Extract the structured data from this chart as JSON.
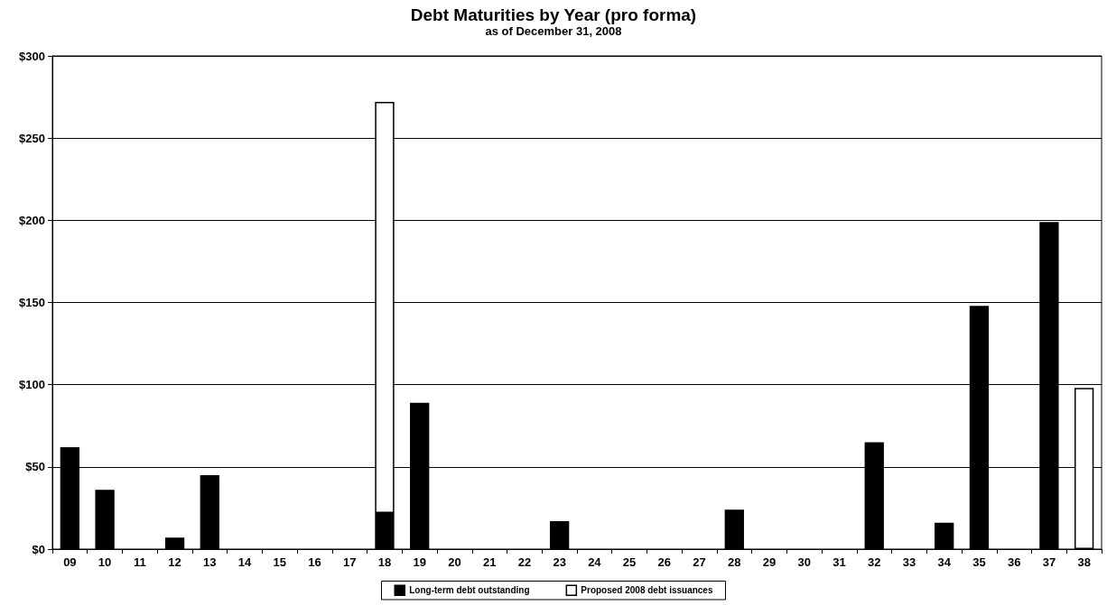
{
  "chart_data": {
    "type": "bar",
    "title": "Debt Maturities by Year (pro forma)",
    "subtitle": "as of December 31, 2008",
    "categories": [
      "09",
      "10",
      "11",
      "12",
      "13",
      "14",
      "15",
      "16",
      "17",
      "18",
      "19",
      "20",
      "21",
      "22",
      "23",
      "24",
      "25",
      "26",
      "27",
      "28",
      "29",
      "30",
      "31",
      "32",
      "33",
      "34",
      "35",
      "36",
      "37",
      "38"
    ],
    "stacked": true,
    "series": [
      {
        "name": "Long-term debt outstanding",
        "color": "#000000",
        "values": [
          62,
          36,
          null,
          7,
          45,
          null,
          null,
          null,
          null,
          22,
          89,
          null,
          null,
          null,
          17,
          null,
          null,
          null,
          null,
          24,
          null,
          null,
          null,
          65,
          null,
          16,
          148,
          null,
          199,
          null
        ]
      },
      {
        "name": "Proposed 2008 debt issuances",
        "color": "#ffffff",
        "values": [
          null,
          null,
          null,
          null,
          null,
          null,
          null,
          null,
          null,
          250,
          null,
          null,
          null,
          null,
          null,
          null,
          null,
          null,
          null,
          null,
          null,
          null,
          null,
          null,
          null,
          null,
          null,
          null,
          null,
          98
        ]
      }
    ],
    "ylim": [
      0,
      300
    ],
    "yticks": [
      {
        "value": 0,
        "label": "$0"
      },
      {
        "value": 50,
        "label": "$50"
      },
      {
        "value": 100,
        "label": "$100"
      },
      {
        "value": 150,
        "label": "$150"
      },
      {
        "value": 200,
        "label": "$200"
      },
      {
        "value": 250,
        "label": "$250"
      },
      {
        "value": 300,
        "label": "$300"
      }
    ],
    "grid": "y",
    "legend": "bottom"
  }
}
